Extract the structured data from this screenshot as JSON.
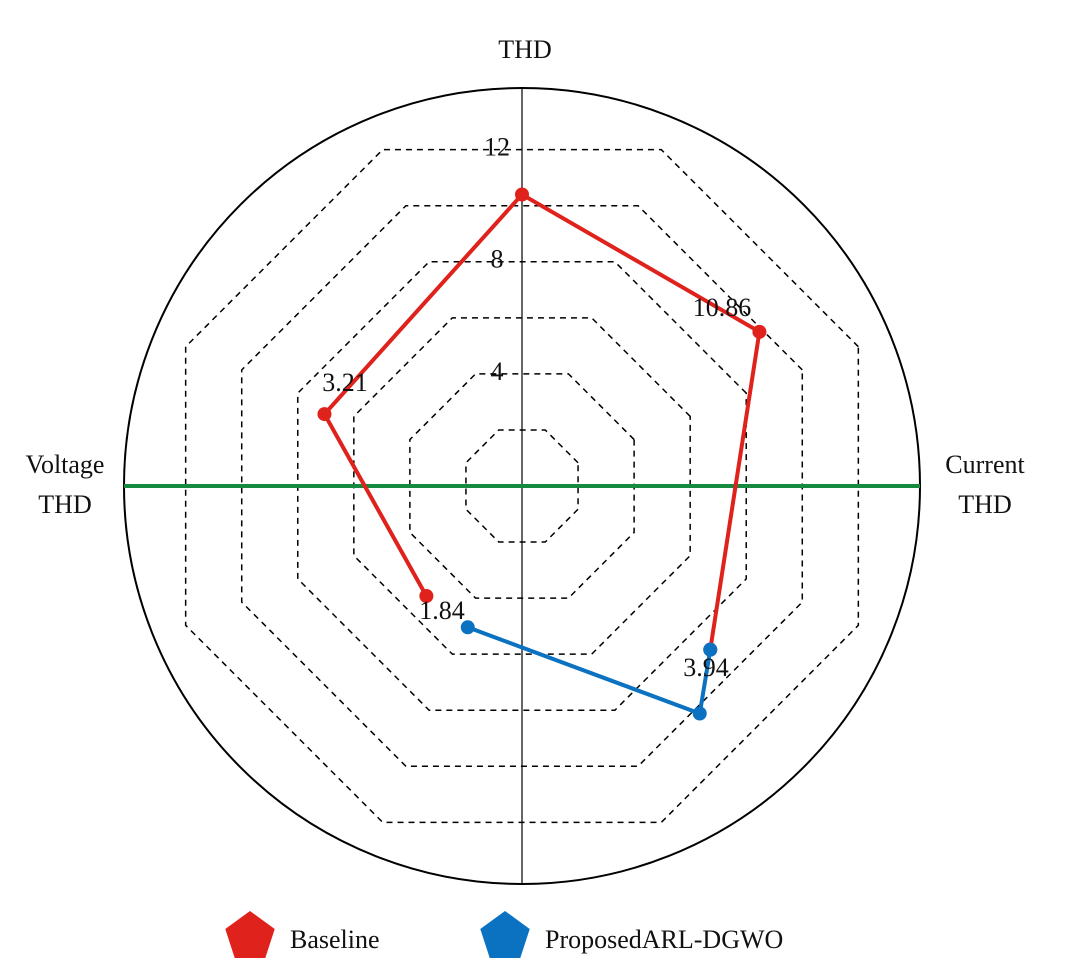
{
  "chart_data": {
    "type": "radar",
    "axis_labels": {
      "top": "THD",
      "left": "Voltage THD",
      "right": "Current THD"
    },
    "rlim": [
      0,
      14.2
    ],
    "rticks": [
      4,
      8,
      12
    ],
    "grid_levels": [
      2,
      4,
      6,
      8,
      10,
      12
    ],
    "series": [
      {
        "name": "Baseline",
        "color": "#e0221c",
        "angles": [
          -131,
          160,
          90,
          33,
          -41
        ],
        "values": [
          5.2,
          7.5,
          10.4,
          10.1,
          8.9
        ]
      },
      {
        "name": "ProposedARL-DGWO",
        "color": "#0b72c2",
        "angles": [
          -111,
          -52,
          -41
        ],
        "values": [
          5.4,
          10.3,
          8.9
        ]
      }
    ],
    "annotations": [
      "10.86",
      "3.21",
      "1.84",
      "3.94"
    ]
  }
}
